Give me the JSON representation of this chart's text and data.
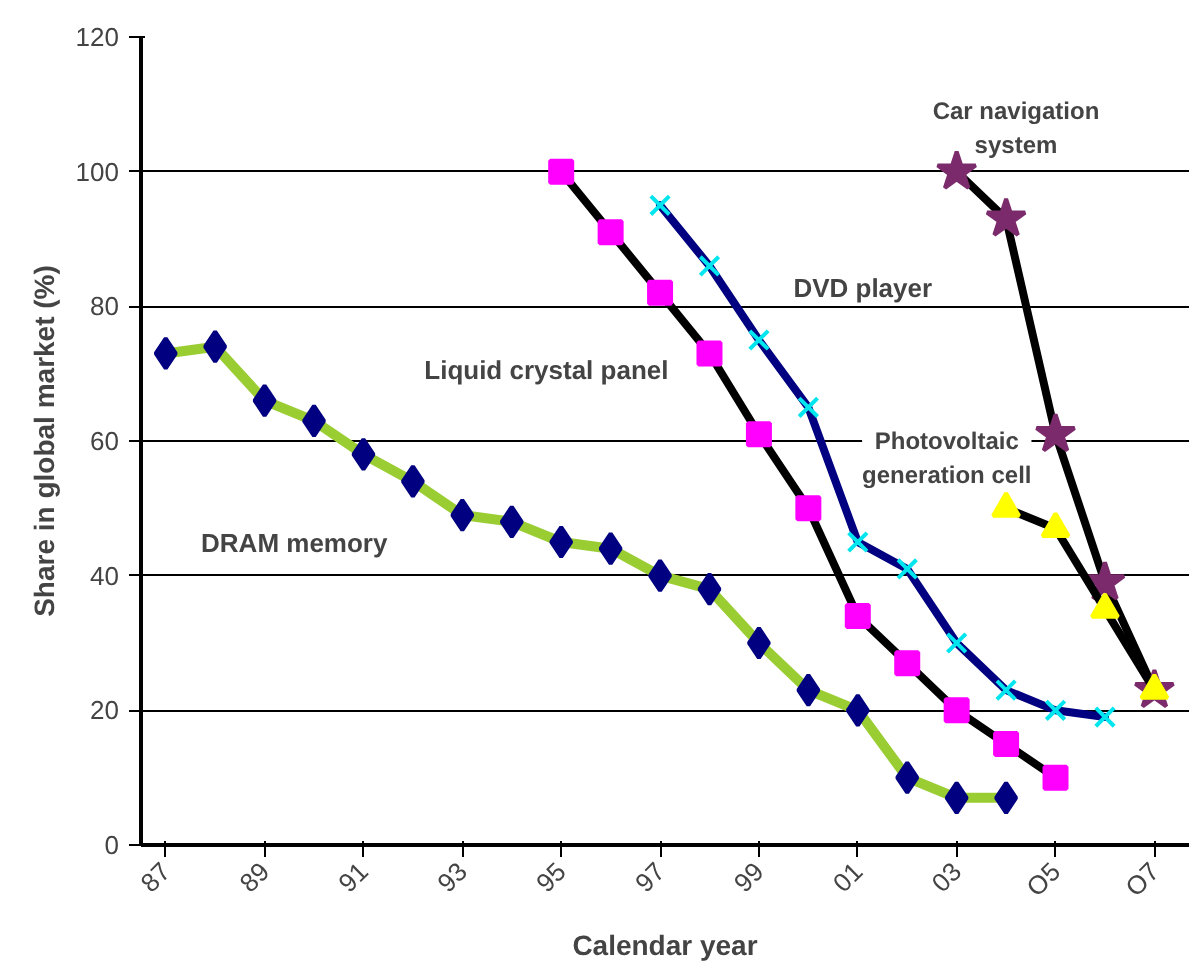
{
  "chart_data": {
    "type": "line",
    "xlabel": "Calendar year",
    "ylabel": "Share in global market (%)",
    "xlim": [
      1986.5,
      2007.7
    ],
    "ylim": [
      0,
      120
    ],
    "xticks": [
      {
        "value": 1987,
        "label": "87"
      },
      {
        "value": 1989,
        "label": "89"
      },
      {
        "value": 1991,
        "label": "91"
      },
      {
        "value": 1993,
        "label": "93"
      },
      {
        "value": 1995,
        "label": "95"
      },
      {
        "value": 1997,
        "label": "97"
      },
      {
        "value": 1999,
        "label": "99"
      },
      {
        "value": 2001,
        "label": "01"
      },
      {
        "value": 2003,
        "label": "03"
      },
      {
        "value": 2005,
        "label": "O5"
      },
      {
        "value": 2007,
        "label": "O7"
      }
    ],
    "yticks": [
      0,
      20,
      40,
      60,
      80,
      100,
      120
    ],
    "grid": "y",
    "series": [
      {
        "name": "DRAM memory",
        "color": "#9acd32",
        "marker": "diamond",
        "x": [
          1987,
          1988,
          1989,
          1990,
          1991,
          1992,
          1993,
          1994,
          1995,
          1996,
          1997,
          1998,
          1999,
          2000,
          2001,
          2002,
          2003,
          2004
        ],
        "values": [
          73,
          74,
          66,
          63,
          58,
          54,
          49,
          48,
          45,
          44,
          40,
          38,
          30,
          23,
          20,
          10,
          7,
          7
        ],
        "colors": [
          "#000080",
          "#000080",
          "#000080",
          "#000080",
          "#000080",
          "#000080",
          "#000080",
          "#000080",
          "#000080",
          "#000080",
          "#000080",
          "#000080",
          "#000080",
          "#000080",
          "#000080",
          "#000080",
          "#000080",
          "#000080"
        ]
      },
      {
        "name": "Liquid crystal panel",
        "color": "#000000",
        "marker": "square",
        "x": [
          1995,
          1996,
          1997,
          1998,
          1999,
          2000,
          2001,
          2002,
          2003,
          2004,
          2005
        ],
        "values": [
          100,
          91,
          82,
          73,
          61,
          50,
          34,
          27,
          20,
          15,
          10
        ],
        "colors": [
          "#ff00ff",
          "#ff00ff",
          "#ff00ff",
          "#ff00ff",
          "#ff00ff",
          "#ff00ff",
          "#ff00ff",
          "#ff00ff",
          "#ff00ff",
          "#ff00ff",
          "#ff00ff"
        ]
      },
      {
        "name": "DVD player",
        "color": "#000080",
        "marker": "cross",
        "x": [
          1997,
          1998,
          1999,
          2000,
          2001,
          2002,
          2003,
          2004,
          2005,
          2006
        ],
        "values": [
          95,
          86,
          75,
          65,
          45,
          41,
          30,
          23,
          20,
          19
        ],
        "colors": [
          "#00e5ee",
          "#00e5ee",
          "#00e5ee",
          "#00e5ee",
          "#00e5ee",
          "#00e5ee",
          "#00e5ee",
          "#00e5ee",
          "#00e5ee",
          "#00e5ee"
        ]
      },
      {
        "name": "Car navigation system",
        "color": "#000000",
        "marker": "star",
        "x": [
          2003,
          2004,
          2005,
          2006,
          2007
        ],
        "values": [
          100,
          93,
          61,
          39,
          23
        ],
        "colors": [
          "#7b2a6b",
          "#7b2a6b",
          "#7b2a6b",
          "#7b2a6b",
          "#7b2a6b"
        ]
      },
      {
        "name": "Photovoltaic generation cell",
        "color": "#000000",
        "marker": "triangle",
        "x": [
          2004,
          2005,
          2006,
          2007
        ],
        "values": [
          50,
          47,
          35,
          23
        ],
        "colors": [
          "#ffff00",
          "#ffff00",
          "#ffff00",
          "#ffff00"
        ]
      }
    ]
  }
}
